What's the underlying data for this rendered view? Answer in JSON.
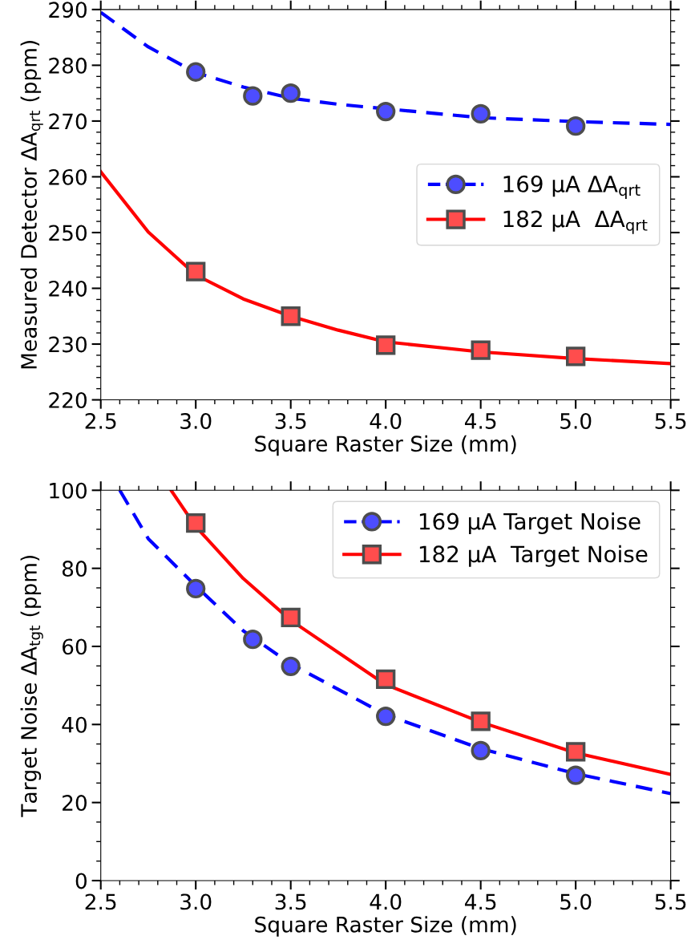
{
  "chart_data": [
    {
      "type": "scatter",
      "xlabel": "Square Raster Size (mm)",
      "ylabel": "Measured Detector ΔA$_{qrt}$ (ppm)",
      "xlim": [
        2.5,
        5.5
      ],
      "ylim": [
        220,
        290
      ],
      "xticks": [
        {
          "value": 2.5,
          "label": "2.5"
        },
        {
          "value": 2.6,
          "label": null
        },
        {
          "value": 2.7,
          "label": null
        },
        {
          "value": 2.8,
          "label": null
        },
        {
          "value": 2.9,
          "label": null
        },
        {
          "value": 3.0,
          "label": "3.0"
        },
        {
          "value": 3.1,
          "label": null
        },
        {
          "value": 3.2,
          "label": null
        },
        {
          "value": 3.3,
          "label": null
        },
        {
          "value": 3.4,
          "label": null
        },
        {
          "value": 3.5,
          "label": "3.5"
        },
        {
          "value": 3.6,
          "label": null
        },
        {
          "value": 3.7,
          "label": null
        },
        {
          "value": 3.8,
          "label": null
        },
        {
          "value": 3.9,
          "label": null
        },
        {
          "value": 4.0,
          "label": "4.0"
        },
        {
          "value": 4.1,
          "label": null
        },
        {
          "value": 4.2,
          "label": null
        },
        {
          "value": 4.3,
          "label": null
        },
        {
          "value": 4.4,
          "label": null
        },
        {
          "value": 4.5,
          "label": "4.5"
        },
        {
          "value": 4.6,
          "label": null
        },
        {
          "value": 4.7,
          "label": null
        },
        {
          "value": 4.8,
          "label": null
        },
        {
          "value": 4.9,
          "label": null
        },
        {
          "value": 5.0,
          "label": "5.0"
        },
        {
          "value": 5.1,
          "label": null
        },
        {
          "value": 5.2,
          "label": null
        },
        {
          "value": 5.3,
          "label": null
        },
        {
          "value": 5.4,
          "label": null
        },
        {
          "value": 5.5,
          "label": "5.5"
        }
      ],
      "yticks": [
        220,
        {
          "value": 222,
          "label": null
        },
        {
          "value": 224,
          "label": null
        },
        {
          "value": 226,
          "label": null
        },
        {
          "value": 228,
          "label": null
        },
        230,
        {
          "value": 232,
          "label": null
        },
        {
          "value": 234,
          "label": null
        },
        {
          "value": 236,
          "label": null
        },
        {
          "value": 238,
          "label": null
        },
        240,
        {
          "value": 242,
          "label": null
        },
        {
          "value": 244,
          "label": null
        },
        {
          "value": 246,
          "label": null
        },
        {
          "value": 248,
          "label": null
        },
        250,
        {
          "value": 252,
          "label": null
        },
        {
          "value": 254,
          "label": null
        },
        {
          "value": 256,
          "label": null
        },
        {
          "value": 258,
          "label": null
        },
        260,
        {
          "value": 262,
          "label": null
        },
        {
          "value": 264,
          "label": null
        },
        {
          "value": 266,
          "label": null
        },
        {
          "value": 268,
          "label": null
        },
        270,
        {
          "value": 272,
          "label": null
        },
        {
          "value": 274,
          "label": null
        },
        {
          "value": 276,
          "label": null
        },
        {
          "value": 278,
          "label": null
        },
        280,
        {
          "value": 282,
          "label": null
        },
        {
          "value": 284,
          "label": null
        },
        {
          "value": 286,
          "label": null
        },
        {
          "value": 288,
          "label": null
        },
        290
      ],
      "grid": false,
      "legend": "right",
      "series": [
        {
          "type": "line",
          "color": "#0000ff",
          "line_style": "dashed",
          "marker": "none",
          "x": [
            2.5,
            2.75,
            3.0,
            3.25,
            3.5,
            3.75,
            4.0,
            4.5,
            5.0,
            5.5
          ],
          "values": [
            289.5,
            283.3,
            278.7,
            276.1,
            274.1,
            273.0,
            272.2,
            270.6,
            269.9,
            269.4
          ]
        },
        {
          "name": "169 μA ΔA$_{qrt}$",
          "color": "#4d4dff",
          "marker": "circle",
          "x": [
            3.0,
            3.3,
            3.5,
            4.0,
            4.5,
            5.0
          ],
          "values": [
            278.8,
            274.5,
            275.0,
            271.7,
            271.3,
            269.1
          ]
        },
        {
          "type": "line",
          "color": "#ff0000",
          "line_style": "solid",
          "marker": "none",
          "x": [
            2.5,
            2.75,
            3.0,
            3.25,
            3.5,
            3.75,
            4.0,
            4.5,
            5.0,
            5.5
          ],
          "values": [
            260.9,
            250.1,
            242.4,
            238.1,
            235.0,
            232.5,
            230.4,
            228.6,
            227.4,
            226.5
          ]
        },
        {
          "name": "182 μA  ΔA$_{qrt}$",
          "color": "#ff4d4d",
          "marker": "square",
          "x": [
            3.0,
            3.5,
            4.0,
            4.5,
            5.0
          ],
          "values": [
            243.0,
            235.0,
            229.8,
            228.9,
            227.8
          ]
        }
      ]
    },
    {
      "type": "scatter",
      "xlabel": "Square Raster Size (mm)",
      "ylabel": "Target Noise ΔA$_{tgt}$ (ppm)",
      "xlim": [
        2.5,
        5.5
      ],
      "ylim": [
        0,
        100
      ],
      "xticks": [
        {
          "value": 2.5,
          "label": "2.5"
        },
        {
          "value": 2.6,
          "label": null
        },
        {
          "value": 2.7,
          "label": null
        },
        {
          "value": 2.8,
          "label": null
        },
        {
          "value": 2.9,
          "label": null
        },
        {
          "value": 3.0,
          "label": "3.0"
        },
        {
          "value": 3.1,
          "label": null
        },
        {
          "value": 3.2,
          "label": null
        },
        {
          "value": 3.3,
          "label": null
        },
        {
          "value": 3.4,
          "label": null
        },
        {
          "value": 3.5,
          "label": "3.5"
        },
        {
          "value": 3.6,
          "label": null
        },
        {
          "value": 3.7,
          "label": null
        },
        {
          "value": 3.8,
          "label": null
        },
        {
          "value": 3.9,
          "label": null
        },
        {
          "value": 4.0,
          "label": "4.0"
        },
        {
          "value": 4.1,
          "label": null
        },
        {
          "value": 4.2,
          "label": null
        },
        {
          "value": 4.3,
          "label": null
        },
        {
          "value": 4.4,
          "label": null
        },
        {
          "value": 4.5,
          "label": "4.5"
        },
        {
          "value": 4.6,
          "label": null
        },
        {
          "value": 4.7,
          "label": null
        },
        {
          "value": 4.8,
          "label": null
        },
        {
          "value": 4.9,
          "label": null
        },
        {
          "value": 5.0,
          "label": "5.0"
        },
        {
          "value": 5.1,
          "label": null
        },
        {
          "value": 5.2,
          "label": null
        },
        {
          "value": 5.3,
          "label": null
        },
        {
          "value": 5.4,
          "label": null
        },
        {
          "value": 5.5,
          "label": "5.5"
        }
      ],
      "yticks": [
        0,
        {
          "value": 5,
          "label": null
        },
        {
          "value": 10,
          "label": null
        },
        {
          "value": 15,
          "label": null
        },
        20,
        {
          "value": 25,
          "label": null
        },
        {
          "value": 30,
          "label": null
        },
        {
          "value": 35,
          "label": null
        },
        40,
        {
          "value": 45,
          "label": null
        },
        {
          "value": 50,
          "label": null
        },
        {
          "value": 55,
          "label": null
        },
        60,
        {
          "value": 65,
          "label": null
        },
        {
          "value": 70,
          "label": null
        },
        {
          "value": 75,
          "label": null
        },
        80,
        {
          "value": 85,
          "label": null
        },
        {
          "value": 90,
          "label": null
        },
        {
          "value": 95,
          "label": null
        },
        100
      ],
      "grid": false,
      "legend": "top right",
      "series": [
        {
          "type": "line",
          "color": "#0000ff",
          "line_style": "dashed",
          "marker": "none",
          "x": [
            2.6,
            2.75,
            3.0,
            3.25,
            3.5,
            4.0,
            4.5,
            5.0,
            5.5
          ],
          "values": [
            100,
            87.6,
            75.5,
            64.0,
            55.5,
            42.5,
            33.8,
            27.4,
            22.3
          ]
        },
        {
          "name": "169 μA Target Noise",
          "color": "#4d4dff",
          "marker": "circle",
          "x": [
            3.0,
            3.3,
            3.5,
            4.0,
            4.5,
            5.0
          ],
          "values": [
            74.8,
            61.8,
            54.9,
            42.1,
            33.3,
            27.0
          ]
        },
        {
          "type": "line",
          "color": "#ff0000",
          "line_style": "solid",
          "marker": "none",
          "x": [
            2.87,
            3.0,
            3.25,
            3.5,
            4.0,
            4.5,
            5.0,
            5.5
          ],
          "values": [
            100,
            90.7,
            77.4,
            66.7,
            50.2,
            40.6,
            32.7,
            27.2
          ]
        },
        {
          "name": "182 μA  Target Noise",
          "color": "#ff4d4d",
          "marker": "square",
          "x": [
            3.0,
            3.5,
            4.0,
            4.5,
            5.0
          ],
          "values": [
            91.6,
            67.4,
            51.6,
            40.8,
            33.0
          ]
        }
      ]
    }
  ]
}
